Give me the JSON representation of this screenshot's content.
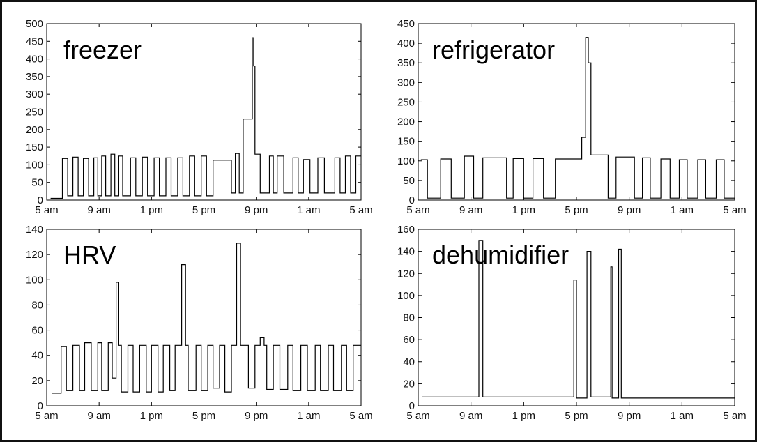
{
  "chart_data": [
    {
      "type": "line",
      "title": "freezer",
      "xticks": [
        "5 am",
        "9 am",
        "1 pm",
        "5 pm",
        "9 pm",
        "1 am",
        "5 am"
      ],
      "xlim": [
        0,
        24
      ],
      "ylim": [
        0,
        500
      ],
      "yticks": [
        0,
        50,
        100,
        150,
        200,
        250,
        300,
        350,
        400,
        450,
        500
      ],
      "grid": false,
      "x": [
        0.3,
        1.2,
        1.2,
        1.6,
        1.6,
        2.0,
        2.0,
        2.4,
        2.4,
        2.8,
        2.8,
        3.2,
        3.2,
        3.6,
        3.6,
        3.9,
        3.9,
        4.2,
        4.2,
        4.5,
        4.5,
        4.9,
        4.9,
        5.2,
        5.2,
        5.5,
        5.5,
        5.8,
        5.8,
        6.4,
        6.4,
        6.8,
        6.8,
        7.3,
        7.3,
        7.7,
        7.7,
        8.2,
        8.2,
        8.6,
        8.6,
        9.1,
        9.1,
        9.5,
        9.5,
        10.0,
        10.0,
        10.4,
        10.4,
        10.9,
        10.9,
        11.3,
        11.3,
        11.8,
        11.8,
        12.2,
        12.2,
        12.7,
        12.7,
        14.1,
        14.1,
        14.4,
        14.4,
        14.7,
        14.7,
        15.0,
        15.0,
        15.7,
        15.7,
        15.8,
        15.8,
        15.9,
        15.9,
        16.3,
        16.3,
        17.0,
        17.0,
        17.3,
        17.3,
        17.6,
        17.6,
        18.1,
        18.1,
        18.8,
        18.8,
        19.2,
        19.2,
        19.6,
        19.6,
        20.1,
        20.1,
        20.7,
        20.7,
        21.2,
        21.2,
        22.0,
        22.0,
        22.4,
        22.4,
        22.8,
        22.8,
        23.2,
        23.2,
        23.6,
        23.6,
        24.0
      ],
      "y": [
        5,
        5,
        118,
        118,
        12,
        12,
        122,
        122,
        12,
        12,
        118,
        118,
        12,
        12,
        120,
        120,
        12,
        12,
        125,
        125,
        12,
        12,
        130,
        130,
        12,
        12,
        125,
        125,
        12,
        12,
        120,
        120,
        12,
        12,
        122,
        122,
        12,
        12,
        120,
        120,
        12,
        12,
        120,
        120,
        12,
        12,
        120,
        120,
        12,
        12,
        125,
        125,
        12,
        12,
        125,
        125,
        12,
        12,
        113,
        113,
        20,
        20,
        132,
        132,
        20,
        20,
        230,
        230,
        460,
        460,
        380,
        380,
        130,
        130,
        20,
        20,
        125,
        125,
        20,
        20,
        125,
        125,
        20,
        20,
        120,
        120,
        20,
        20,
        115,
        115,
        20,
        20,
        120,
        120,
        20,
        20,
        120,
        120,
        20,
        20,
        125,
        125,
        20,
        20,
        125,
        125
      ]
    },
    {
      "type": "line",
      "title": "refrigerator",
      "xticks": [
        "5 am",
        "9 am",
        "1 pm",
        "5 pm",
        "9 pm",
        "1 am",
        "5 am"
      ],
      "xlim": [
        0,
        24
      ],
      "ylim": [
        0,
        450
      ],
      "yticks": [
        0,
        50,
        100,
        150,
        200,
        250,
        300,
        350,
        400,
        450
      ],
      "grid": false,
      "x": [
        0.2,
        0.7,
        0.7,
        1.7,
        1.7,
        2.5,
        2.5,
        3.5,
        3.5,
        4.2,
        4.2,
        4.9,
        4.9,
        6.7,
        6.7,
        7.2,
        7.2,
        8.0,
        8.0,
        8.7,
        8.7,
        9.5,
        9.5,
        10.4,
        10.4,
        12.4,
        12.4,
        12.7,
        12.7,
        12.9,
        12.9,
        13.1,
        13.1,
        14.4,
        14.4,
        15.0,
        15.0,
        16.4,
        16.4,
        17.0,
        17.0,
        17.6,
        17.6,
        18.4,
        18.4,
        19.1,
        19.1,
        19.8,
        19.8,
        20.4,
        20.4,
        21.2,
        21.2,
        21.8,
        21.8,
        22.6,
        22.6,
        23.2,
        23.2,
        24.0
      ],
      "y": [
        103,
        103,
        5,
        5,
        105,
        105,
        5,
        5,
        112,
        112,
        5,
        5,
        108,
        108,
        5,
        5,
        106,
        106,
        5,
        5,
        106,
        106,
        5,
        5,
        105,
        105,
        160,
        160,
        415,
        415,
        350,
        350,
        115,
        115,
        5,
        5,
        110,
        110,
        5,
        5,
        108,
        108,
        5,
        5,
        105,
        105,
        5,
        5,
        103,
        103,
        5,
        5,
        103,
        103,
        5,
        5,
        103,
        103,
        5,
        5
      ]
    },
    {
      "type": "line",
      "title": "HRV",
      "xticks": [
        "5 am",
        "9 am",
        "1 pm",
        "5 pm",
        "9 pm",
        "1 am",
        "5 am"
      ],
      "xlim": [
        0,
        24
      ],
      "ylim": [
        0,
        140
      ],
      "yticks": [
        0,
        20,
        40,
        60,
        80,
        100,
        120,
        140
      ],
      "grid": false,
      "x": [
        0.4,
        1.1,
        1.1,
        1.5,
        1.5,
        2.0,
        2.0,
        2.5,
        2.5,
        2.9,
        2.9,
        3.4,
        3.4,
        3.9,
        3.9,
        4.2,
        4.2,
        4.7,
        4.7,
        5.0,
        5.0,
        5.3,
        5.3,
        5.5,
        5.5,
        5.7,
        5.7,
        6.2,
        6.2,
        6.6,
        6.6,
        7.1,
        7.1,
        7.6,
        7.6,
        8.0,
        8.0,
        8.5,
        8.5,
        8.9,
        8.9,
        9.4,
        9.4,
        9.8,
        9.8,
        10.3,
        10.3,
        10.6,
        10.6,
        10.8,
        10.8,
        11.4,
        11.4,
        11.8,
        11.8,
        12.3,
        12.3,
        12.7,
        12.7,
        13.2,
        13.2,
        13.6,
        13.6,
        14.1,
        14.1,
        14.5,
        14.5,
        14.8,
        14.8,
        15.4,
        15.4,
        15.9,
        15.9,
        16.3,
        16.3,
        16.6,
        16.6,
        16.8,
        16.8,
        17.3,
        17.3,
        17.8,
        17.8,
        18.4,
        18.4,
        18.8,
        18.8,
        19.4,
        19.4,
        19.9,
        19.9,
        20.5,
        20.5,
        20.9,
        20.9,
        21.5,
        21.5,
        21.9,
        21.9,
        22.5,
        22.5,
        22.9,
        22.9,
        23.4,
        23.4,
        24.0
      ],
      "y": [
        10,
        10,
        47,
        47,
        12,
        12,
        48,
        48,
        12,
        12,
        50,
        50,
        12,
        12,
        50,
        50,
        12,
        12,
        50,
        50,
        22,
        22,
        98,
        98,
        48,
        48,
        11,
        11,
        48,
        48,
        11,
        11,
        48,
        48,
        11,
        11,
        48,
        48,
        11,
        11,
        48,
        48,
        12,
        12,
        48,
        48,
        112,
        112,
        48,
        48,
        12,
        12,
        48,
        48,
        12,
        12,
        48,
        48,
        14,
        14,
        48,
        48,
        11,
        11,
        48,
        48,
        129,
        129,
        48,
        48,
        14,
        14,
        48,
        48,
        54,
        54,
        48,
        48,
        13,
        13,
        48,
        48,
        13,
        13,
        48,
        48,
        12,
        12,
        48,
        48,
        12,
        12,
        48,
        48,
        12,
        12,
        48,
        48,
        12,
        12,
        48,
        48,
        12,
        12,
        48,
        48
      ]
    },
    {
      "type": "line",
      "title": "dehumidifier",
      "xticks": [
        "5 am",
        "9 am",
        "1 pm",
        "5 pm",
        "9 pm",
        "1 am",
        "5 am"
      ],
      "xlim": [
        0,
        24
      ],
      "ylim": [
        0,
        160
      ],
      "yticks": [
        0,
        20,
        40,
        60,
        80,
        100,
        120,
        140,
        160
      ],
      "grid": false,
      "x": [
        0.3,
        4.6,
        4.6,
        4.9,
        4.9,
        11.8,
        11.8,
        12.0,
        12.0,
        12.8,
        12.8,
        13.1,
        13.1,
        14.6,
        14.6,
        14.7,
        14.7,
        15.2,
        15.2,
        15.4,
        15.4,
        15.6,
        15.6,
        24.0
      ],
      "y": [
        8,
        8,
        150,
        150,
        8,
        8,
        114,
        114,
        7,
        7,
        140,
        140,
        8,
        8,
        126,
        126,
        7,
        7,
        142,
        142,
        7,
        7,
        7,
        7
      ]
    }
  ]
}
